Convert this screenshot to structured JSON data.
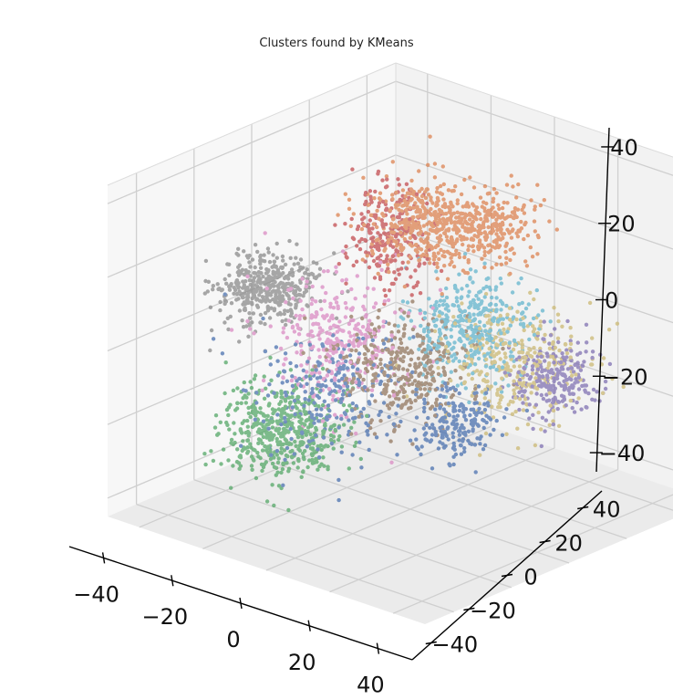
{
  "chart_data": {
    "type": "scatter",
    "projection": "3d",
    "title": "Clusters found by KMeans",
    "xlim": [
      -50,
      50
    ],
    "ylim": [
      -50,
      50
    ],
    "zlim": [
      -45,
      45
    ],
    "x_ticks": [
      "−40",
      "−20",
      "0",
      "20",
      "40"
    ],
    "y_ticks": [
      "−40",
      "−20",
      "0",
      "20",
      "40"
    ],
    "z_ticks": [
      "−40",
      "−20",
      "0",
      "20",
      "40"
    ],
    "grid": true,
    "legend": "none",
    "point_alpha": 0.75,
    "clusters": [
      {
        "color": "#8c8c8c",
        "center": [
          -45,
          0,
          2
        ],
        "spread": [
          6,
          6,
          4
        ],
        "n": 420
      },
      {
        "color": "#dd8452",
        "center": [
          -5,
          10,
          28
        ],
        "spread": [
          7,
          7,
          5
        ],
        "n": 360
      },
      {
        "color": "#dd8452",
        "center": [
          10,
          15,
          30
        ],
        "spread": [
          6,
          6,
          4
        ],
        "n": 300
      },
      {
        "color": "#c44e52",
        "center": [
          -15,
          10,
          22
        ],
        "spread": [
          5,
          5,
          7
        ],
        "n": 260
      },
      {
        "color": "#da8bc3",
        "center": [
          -15,
          -8,
          -2
        ],
        "spread": [
          8,
          8,
          8
        ],
        "n": 340
      },
      {
        "color": "#937860",
        "center": [
          2,
          -5,
          -5
        ],
        "spread": [
          8,
          8,
          6
        ],
        "n": 360
      },
      {
        "color": "#4c72b0",
        "center": [
          -8,
          -18,
          -10
        ],
        "spread": [
          9,
          9,
          7
        ],
        "n": 260
      },
      {
        "color": "#4c72b0",
        "center": [
          20,
          -5,
          -15
        ],
        "spread": [
          5,
          5,
          4
        ],
        "n": 200
      },
      {
        "color": "#64b5cd",
        "center": [
          10,
          10,
          4
        ],
        "spread": [
          7,
          7,
          6
        ],
        "n": 380
      },
      {
        "color": "#ccb974",
        "center": [
          22,
          12,
          -2
        ],
        "spread": [
          8,
          8,
          7
        ],
        "n": 340
      },
      {
        "color": "#8172b3",
        "center": [
          32,
          15,
          -5
        ],
        "spread": [
          5,
          5,
          5
        ],
        "n": 240
      },
      {
        "color": "#55a868",
        "center": [
          -20,
          -22,
          -22
        ],
        "spread": [
          7,
          7,
          6
        ],
        "n": 520
      }
    ]
  }
}
